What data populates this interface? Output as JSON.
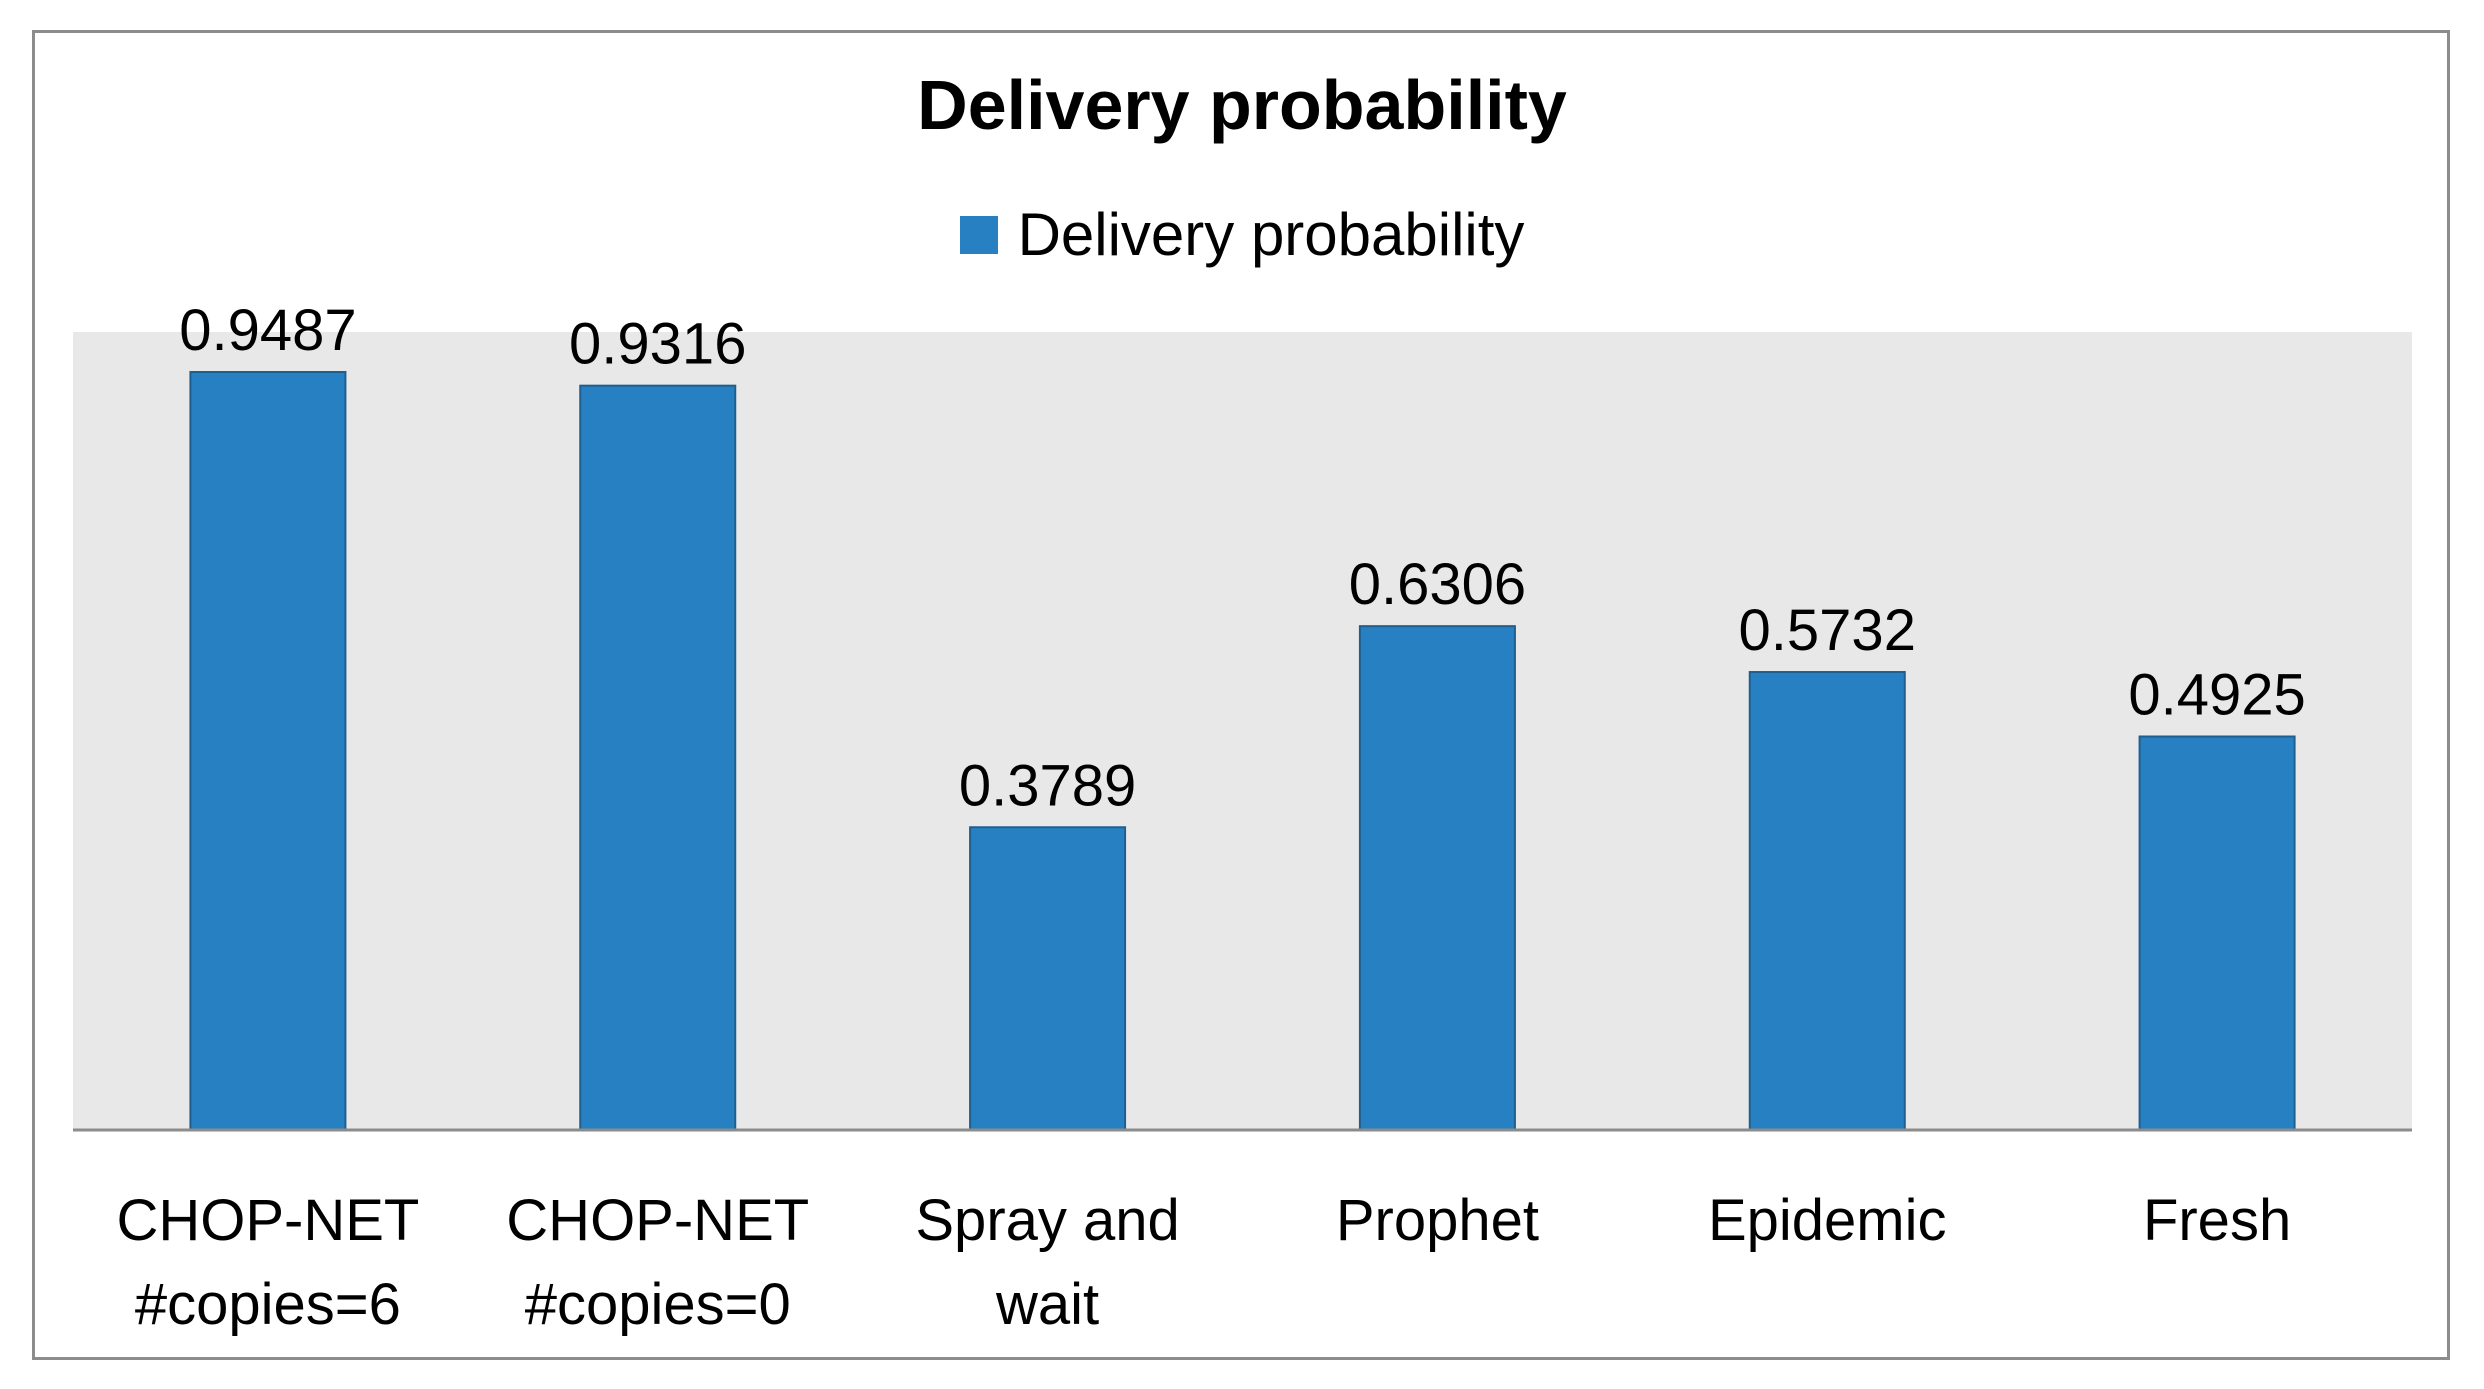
{
  "chart_data": {
    "type": "bar",
    "title": "Delivery probability",
    "categories": [
      [
        "CHOP-NET",
        "#copies=6"
      ],
      [
        "CHOP-NET",
        "#copies=0"
      ],
      [
        "Spray and",
        "wait"
      ],
      [
        "Prophet"
      ],
      [
        "Epidemic"
      ],
      [
        "Fresh"
      ]
    ],
    "series": [
      {
        "name": "Delivery probability",
        "values": [
          0.9487,
          0.9316,
          0.3789,
          0.6306,
          0.5732,
          0.4925
        ],
        "data_labels": [
          "0.9487",
          "0.9316",
          "0.3789",
          "0.6306",
          "0.5732",
          "0.4925"
        ],
        "color": "#2680C2"
      }
    ],
    "xlabel": "",
    "ylabel": "",
    "ylim": [
      0,
      1
    ],
    "grid": false,
    "legend": "top-center",
    "plot_background": "#E8E8E8"
  }
}
